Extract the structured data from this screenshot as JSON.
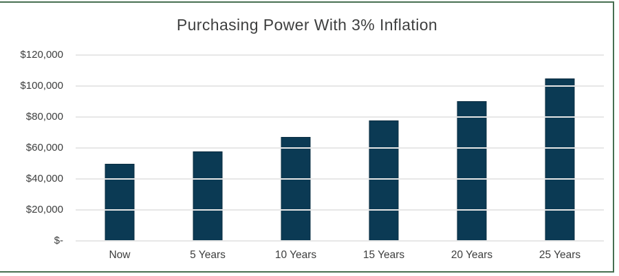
{
  "frame": {
    "border_color": "#466e50",
    "background": "#ffffff"
  },
  "chart_data": {
    "type": "bar",
    "title": "Purchasing Power With 3% Inflation",
    "categories": [
      "Now",
      "5 Years",
      "10 Years",
      "15 Years",
      "20 Years",
      "25 Years"
    ],
    "values": [
      50000,
      57964,
      67196,
      77898,
      90306,
      104689
    ],
    "y_ticks": [
      "$120,000",
      "$100,000",
      "$80,000",
      "$60,000",
      "$40,000",
      "$20,000",
      "$-"
    ],
    "y_tick_values": [
      120000,
      100000,
      80000,
      60000,
      40000,
      20000,
      0
    ],
    "ylim": [
      0,
      120000
    ],
    "xlabel": "",
    "ylabel": "",
    "grid": true,
    "legend": false,
    "bar_color": "#0b3a54",
    "bar_border_color": "#0a2c40",
    "gridline_color": "#e7e7e7",
    "title_color": "#3e3f3f",
    "tick_label_color": "#3c3d3d"
  }
}
